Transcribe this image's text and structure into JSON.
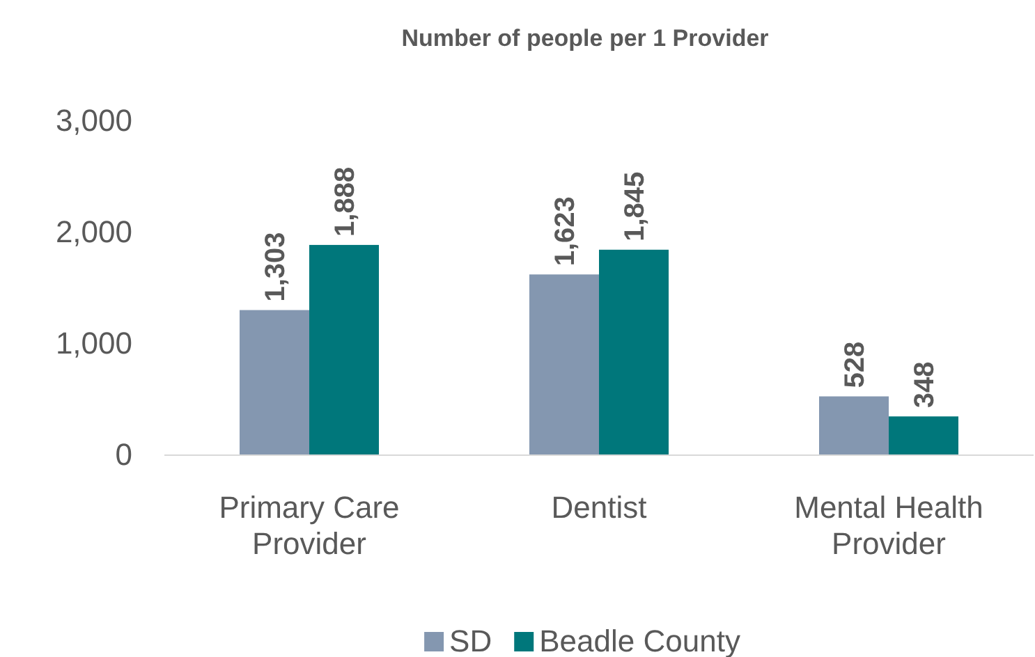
{
  "chart_data": {
    "type": "bar",
    "title": "Number of people per 1 Provider",
    "categories": [
      "Primary Care Provider",
      "Dentist",
      "Mental Health Provider"
    ],
    "series": [
      {
        "name": "SD",
        "color": "#8497b0",
        "values": [
          1303,
          1623,
          528
        ],
        "value_labels": [
          "1,303",
          "1,623",
          "528"
        ]
      },
      {
        "name": "Beadle County",
        "color": "#00777b",
        "values": [
          1888,
          1845,
          348
        ],
        "value_labels": [
          "1,888",
          "1,845",
          "348"
        ]
      }
    ],
    "ylim": [
      0,
      3000
    ],
    "yticks": [
      {
        "value": 0,
        "label": "0"
      },
      {
        "value": 1000,
        "label": "1,000"
      },
      {
        "value": 2000,
        "label": "2,000"
      },
      {
        "value": 3000,
        "label": "3,000"
      }
    ],
    "legend": "bottom",
    "grid": false
  }
}
